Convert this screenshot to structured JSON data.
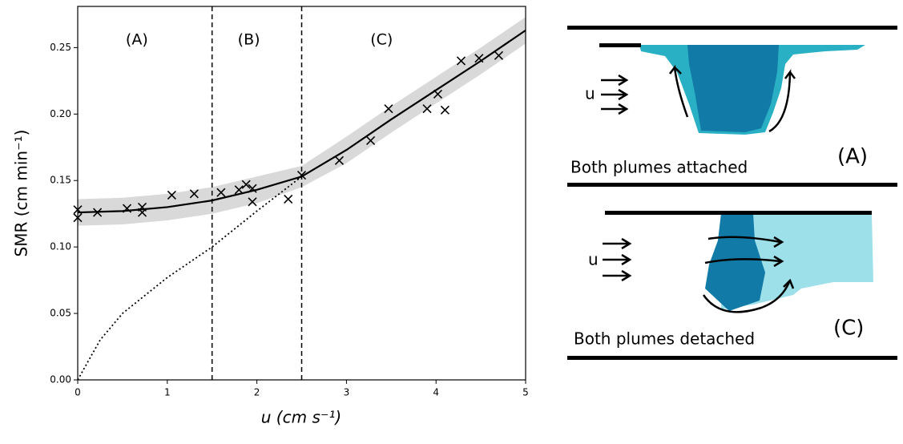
{
  "chart_data": {
    "type": "scatter",
    "xlabel": "u (cm s⁻¹)",
    "ylabel": "SMR (cm min⁻¹)",
    "xlim": [
      0,
      5
    ],
    "ylim": [
      0,
      0.281
    ],
    "xticks": [
      0,
      1,
      2,
      3,
      4,
      5
    ],
    "yticks": [
      {
        "value": 0,
        "label": "0.00"
      },
      {
        "value": 0.05,
        "label": "0.05"
      },
      {
        "value": 0.1,
        "label": "0.10"
      },
      {
        "value": 0.15,
        "label": "0.15"
      },
      {
        "value": 0.2,
        "label": "0.20"
      },
      {
        "value": 0.25,
        "label": "0.25"
      }
    ],
    "vlines": [
      1.5,
      2.5
    ],
    "regions": [
      "(A)",
      "(B)",
      "(C)"
    ],
    "points": {
      "color": "#000000",
      "x": [
        0,
        0,
        0.22,
        0.55,
        0.72,
        0.72,
        1.05,
        1.3,
        1.6,
        1.8,
        1.88,
        1.95,
        1.95,
        2.35,
        2.5,
        2.92,
        3.27,
        3.47,
        3.9,
        4.02,
        4.1,
        4.28,
        4.48,
        4.7
      ],
      "values": [
        0.128,
        0.122,
        0.126,
        0.129,
        0.13,
        0.126,
        0.139,
        0.14,
        0.141,
        0.143,
        0.147,
        0.144,
        0.134,
        0.136,
        0.154,
        0.165,
        0.18,
        0.204,
        0.204,
        0.215,
        0.203,
        0.24,
        0.242,
        0.244
      ]
    },
    "fit": {
      "color": "#000000",
      "band_color": "#d9d9d9",
      "x": [
        0,
        0.5,
        1,
        1.5,
        2,
        2.5,
        3,
        3.5,
        4,
        4.5,
        5
      ],
      "values": [
        0.126,
        0.127,
        0.13,
        0.135,
        0.143,
        0.153,
        0.173,
        0.196,
        0.218,
        0.24,
        0.263
      ],
      "lower": [
        0.116,
        0.117,
        0.12,
        0.125,
        0.133,
        0.145,
        0.163,
        0.186,
        0.208,
        0.23,
        0.253
      ],
      "upper": [
        0.136,
        0.137,
        0.14,
        0.145,
        0.153,
        0.161,
        0.183,
        0.206,
        0.228,
        0.25,
        0.273
      ]
    },
    "extrapolation": {
      "color": "#000000",
      "x": [
        0,
        0.25,
        0.5,
        1,
        1.5,
        2,
        2.5
      ],
      "values": [
        0,
        0.03,
        0.05,
        0.077,
        0.1,
        0.127,
        0.153
      ]
    }
  },
  "diagram": {
    "panel_a": {
      "flow_label": "u",
      "caption": "Both plumes attached",
      "tag": "(A)"
    },
    "panel_c": {
      "flow_label": "u",
      "caption": "Both plumes detached",
      "tag": "(C)"
    }
  }
}
